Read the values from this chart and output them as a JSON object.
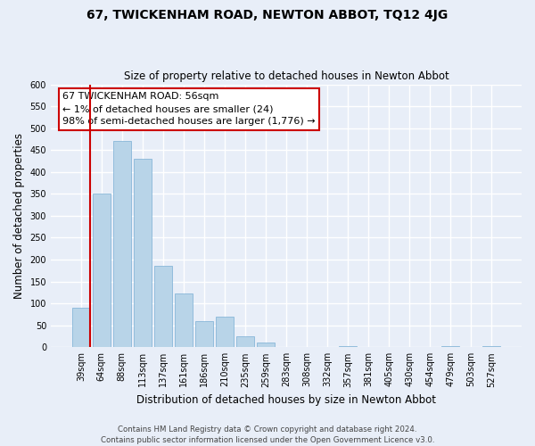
{
  "title": "67, TWICKENHAM ROAD, NEWTON ABBOT, TQ12 4JG",
  "subtitle": "Size of property relative to detached houses in Newton Abbot",
  "xlabel": "Distribution of detached houses by size in Newton Abbot",
  "ylabel": "Number of detached properties",
  "bar_labels": [
    "39sqm",
    "64sqm",
    "88sqm",
    "113sqm",
    "137sqm",
    "161sqm",
    "186sqm",
    "210sqm",
    "235sqm",
    "259sqm",
    "283sqm",
    "308sqm",
    "332sqm",
    "357sqm",
    "381sqm",
    "405sqm",
    "430sqm",
    "454sqm",
    "479sqm",
    "503sqm",
    "527sqm"
  ],
  "bar_values": [
    90,
    350,
    470,
    430,
    185,
    122,
    60,
    70,
    25,
    10,
    0,
    0,
    0,
    2,
    0,
    0,
    0,
    0,
    2,
    0,
    2
  ],
  "bar_color": "#b8d4e8",
  "bar_edge_color": "#7aafd4",
  "highlight_color": "#cc0000",
  "annotation_title": "67 TWICKENHAM ROAD: 56sqm",
  "annotation_line1": "← 1% of detached houses are smaller (24)",
  "annotation_line2": "98% of semi-detached houses are larger (1,776) →",
  "annotation_box_color": "#ffffff",
  "annotation_box_edge_color": "#cc0000",
  "ylim": [
    0,
    600
  ],
  "yticks": [
    0,
    50,
    100,
    150,
    200,
    250,
    300,
    350,
    400,
    450,
    500,
    550,
    600
  ],
  "footer_line1": "Contains HM Land Registry data © Crown copyright and database right 2024.",
  "footer_line2": "Contains public sector information licensed under the Open Government Licence v3.0.",
  "bg_color": "#e8eef8",
  "grid_color": "#ffffff",
  "title_fontsize": 10,
  "subtitle_fontsize": 8.5,
  "axis_label_fontsize": 8.5,
  "tick_fontsize": 7,
  "footer_fontsize": 6.2
}
